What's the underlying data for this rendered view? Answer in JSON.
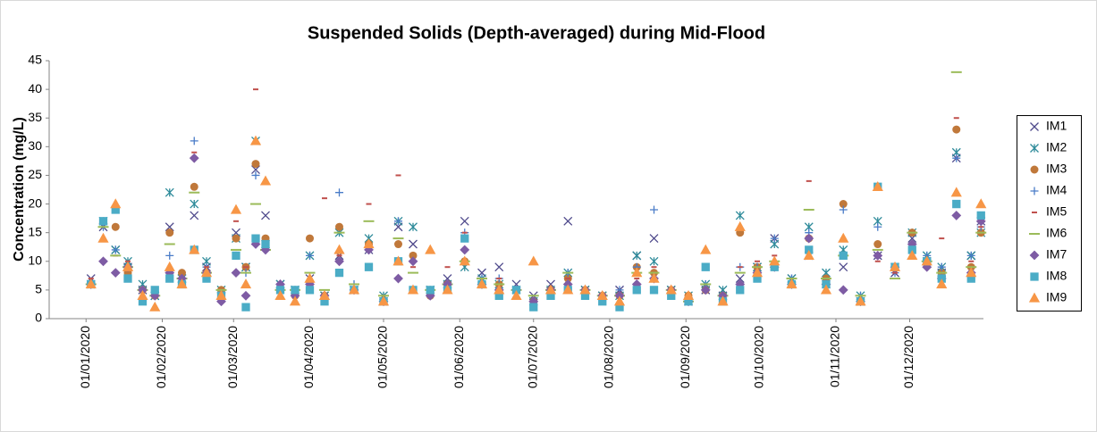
{
  "chart_data": {
    "type": "scatter",
    "title": "Suspended Solids (Depth-averaged) during Mid-Flood",
    "y_label": "Concentration (mg/L)",
    "xlim": [
      "2019-12-17",
      "2020-12-31"
    ],
    "xticks": [
      {
        "value": "2020-01-01",
        "label": "01/01/2020"
      },
      {
        "value": "2020-02-01",
        "label": "01/02/2020"
      },
      {
        "value": "2020-03-01",
        "label": "01/03/2020"
      },
      {
        "value": "2020-04-01",
        "label": "01/04/2020"
      },
      {
        "value": "2020-05-01",
        "label": "01/05/2020"
      },
      {
        "value": "2020-06-01",
        "label": "01/06/2020"
      },
      {
        "value": "2020-07-01",
        "label": "01/07/2020"
      },
      {
        "value": "2020-08-01",
        "label": "01/08/2020"
      },
      {
        "value": "2020-09-01",
        "label": "01/09/2020"
      },
      {
        "value": "2020-10-01",
        "label": "01/10/2020"
      },
      {
        "value": "2020-11-01",
        "label": "01/11/2020"
      },
      {
        "value": "2020-12-01",
        "label": "01/12/2020"
      }
    ],
    "ylim": [
      0,
      45
    ],
    "yticks": [
      0,
      5,
      10,
      15,
      20,
      25,
      30,
      35,
      40,
      45
    ],
    "grid": false,
    "legend": "right",
    "x": [
      "2020-01-03",
      "2020-01-08",
      "2020-01-13",
      "2020-01-18",
      "2020-01-24",
      "2020-01-29",
      "2020-02-04",
      "2020-02-09",
      "2020-02-14",
      "2020-02-19",
      "2020-02-25",
      "2020-03-02",
      "2020-03-06",
      "2020-03-10",
      "2020-03-14",
      "2020-03-20",
      "2020-03-26",
      "2020-04-01",
      "2020-04-07",
      "2020-04-13",
      "2020-04-19",
      "2020-04-25",
      "2020-05-01",
      "2020-05-07",
      "2020-05-13",
      "2020-05-20",
      "2020-05-27",
      "2020-06-03",
      "2020-06-10",
      "2020-06-17",
      "2020-06-24",
      "2020-07-01",
      "2020-07-08",
      "2020-07-15",
      "2020-07-22",
      "2020-07-29",
      "2020-08-05",
      "2020-08-12",
      "2020-08-19",
      "2020-08-26",
      "2020-09-02",
      "2020-09-09",
      "2020-09-16",
      "2020-09-23",
      "2020-09-30",
      "2020-10-07",
      "2020-10-14",
      "2020-10-21",
      "2020-10-28",
      "2020-11-04",
      "2020-11-11",
      "2020-11-18",
      "2020-11-25",
      "2020-12-02",
      "2020-12-08",
      "2020-12-14",
      "2020-12-20",
      "2020-12-26",
      "2020-12-30"
    ],
    "series": [
      {
        "name": "IM1",
        "color": "#4f4a8c",
        "marker": "x",
        "values": [
          7,
          16,
          12,
          9,
          5,
          4,
          16,
          7,
          18,
          9,
          4,
          15,
          9,
          26,
          18,
          6,
          5,
          7,
          4,
          11,
          5,
          12,
          3,
          16,
          13,
          5,
          7,
          17,
          8,
          9,
          6,
          4,
          6,
          17,
          5,
          4,
          5,
          11,
          14,
          5,
          3,
          5,
          4,
          7,
          9,
          14,
          7,
          11,
          6,
          9,
          3,
          11,
          8,
          14,
          10,
          8,
          28,
          11,
          17
        ]
      },
      {
        "name": "IM2",
        "color": "#2e8b9a",
        "marker": "asterisk",
        "values": [
          6,
          17,
          12,
          10,
          6,
          4,
          22,
          7,
          20,
          10,
          5,
          14,
          9,
          31,
          13,
          6,
          5,
          11,
          4,
          15,
          5,
          14,
          4,
          17,
          16,
          5,
          6,
          9,
          7,
          6,
          5,
          3,
          5,
          8,
          5,
          4,
          4,
          11,
          10,
          5,
          4,
          6,
          5,
          18,
          9,
          13,
          7,
          16,
          8,
          12,
          4,
          17,
          9,
          15,
          11,
          9,
          29,
          11,
          15
        ]
      },
      {
        "name": "IM3",
        "color": "#c0783a",
        "marker": "circle",
        "values": [
          6,
          17,
          16,
          8,
          5,
          4,
          15,
          8,
          23,
          8,
          5,
          14,
          9,
          27,
          14,
          5,
          4,
          14,
          4,
          16,
          5,
          13,
          3,
          13,
          11,
          4,
          6,
          10,
          6,
          6,
          5,
          3,
          5,
          7,
          5,
          4,
          4,
          9,
          8,
          5,
          4,
          5,
          4,
          15,
          9,
          9,
          6,
          14,
          7,
          20,
          3,
          13,
          9,
          15,
          10,
          8,
          33,
          9,
          15
        ]
      },
      {
        "name": "IM4",
        "color": "#4a7cc8",
        "marker": "plus",
        "values": [
          6,
          16,
          12,
          9,
          5,
          4,
          11,
          7,
          31,
          9,
          4,
          11,
          8,
          25,
          12,
          5,
          5,
          11,
          4,
          22,
          6,
          12,
          3,
          17,
          10,
          5,
          6,
          15,
          7,
          7,
          5,
          3,
          5,
          8,
          5,
          4,
          5,
          9,
          19,
          5,
          3,
          6,
          4,
          9,
          9,
          14,
          7,
          15,
          6,
          19,
          4,
          16,
          8,
          13,
          11,
          9,
          28,
          11,
          16
        ]
      },
      {
        "name": "IM5",
        "color": "#c0504d",
        "marker": "dash",
        "values": [
          7,
          17,
          11,
          10,
          5,
          4,
          13,
          7,
          29,
          9,
          5,
          17,
          9,
          40,
          13,
          6,
          5,
          7,
          21,
          11,
          6,
          20,
          4,
          25,
          9,
          5,
          9,
          15,
          7,
          7,
          5,
          3,
          5,
          7,
          5,
          4,
          4,
          7,
          9,
          5,
          3,
          6,
          4,
          9,
          10,
          11,
          7,
          24,
          7,
          14,
          3,
          10,
          8,
          15,
          10,
          14,
          35,
          10,
          16
        ]
      },
      {
        "name": "IM6",
        "color": "#9bbb59",
        "marker": "longdash",
        "values": [
          6,
          16,
          11,
          9,
          5,
          4,
          13,
          7,
          22,
          8,
          5,
          12,
          8,
          20,
          12,
          5,
          5,
          8,
          5,
          15,
          6,
          17,
          4,
          14,
          8,
          5,
          6,
          10,
          7,
          6,
          5,
          4,
          5,
          8,
          5,
          4,
          4,
          8,
          8,
          5,
          3,
          6,
          4,
          8,
          9,
          10,
          7,
          19,
          7,
          11,
          4,
          12,
          7,
          15,
          10,
          8,
          43,
          9,
          15
        ]
      },
      {
        "name": "IM7",
        "color": "#7e5ca4",
        "marker": "diamond",
        "values": [
          6,
          10,
          8,
          9,
          5,
          4,
          8,
          7,
          28,
          8,
          3,
          8,
          4,
          13,
          12,
          6,
          4,
          6,
          4,
          10,
          5,
          12,
          3,
          7,
          10,
          4,
          6,
          12,
          6,
          5,
          5,
          3,
          5,
          6,
          5,
          4,
          4,
          6,
          7,
          5,
          3,
          5,
          4,
          6,
          8,
          9,
          6,
          14,
          6,
          5,
          3,
          11,
          9,
          13,
          9,
          7,
          18,
          8,
          17
        ]
      },
      {
        "name": "IM8",
        "color": "#4bacc6",
        "marker": "square",
        "values": [
          6,
          17,
          19,
          7,
          3,
          5,
          7,
          6,
          12,
          7,
          4,
          11,
          2,
          14,
          13,
          5,
          5,
          5,
          3,
          8,
          5,
          9,
          3,
          10,
          5,
          5,
          5,
          14,
          6,
          4,
          5,
          2,
          4,
          5,
          4,
          3,
          2,
          5,
          5,
          4,
          3,
          9,
          3,
          5,
          7,
          9,
          6,
          12,
          6,
          11,
          3,
          23,
          9,
          12,
          10,
          7,
          20,
          7,
          18
        ]
      },
      {
        "name": "IM9",
        "color": "#f79646",
        "marker": "triangle",
        "values": [
          6,
          14,
          20,
          9,
          4,
          2,
          9,
          6,
          12,
          8,
          4,
          19,
          6,
          31,
          24,
          4,
          3,
          7,
          4,
          12,
          5,
          13,
          3,
          10,
          5,
          12,
          5,
          10,
          6,
          5,
          4,
          10,
          5,
          5,
          5,
          4,
          3,
          8,
          7,
          5,
          4,
          12,
          3,
          16,
          8,
          10,
          6,
          11,
          5,
          14,
          3,
          23,
          9,
          11,
          10,
          6,
          22,
          8,
          20
        ]
      }
    ]
  }
}
